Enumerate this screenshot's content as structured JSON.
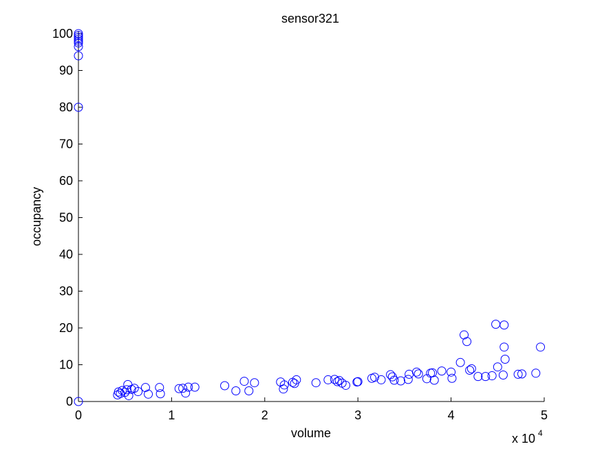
{
  "chart_data": {
    "type": "scatter",
    "title": "sensor321",
    "xlabel": "volume",
    "ylabel": "occupancy",
    "x_multiplier_label": "x 10",
    "x_multiplier_exponent": "4",
    "xlim": [
      0,
      5
    ],
    "ylim": [
      0,
      100
    ],
    "xticks": [
      "0",
      "1",
      "2",
      "3",
      "4",
      "5"
    ],
    "yticks": [
      "0",
      "10",
      "20",
      "30",
      "40",
      "50",
      "60",
      "70",
      "80",
      "90",
      "100"
    ],
    "grid": false,
    "marker": "open-circle",
    "marker_color": "#0000ff",
    "series": [
      {
        "points": [
          [
            0,
            0
          ],
          [
            0,
            80
          ],
          [
            0,
            94
          ],
          [
            0,
            96.5
          ],
          [
            0,
            97.5
          ],
          [
            0,
            98
          ],
          [
            0,
            98.5
          ],
          [
            0,
            99
          ],
          [
            0,
            99.5
          ],
          [
            0,
            100
          ],
          [
            0.42,
            1.8
          ],
          [
            0.43,
            2.6
          ],
          [
            0.45,
            2.2
          ],
          [
            0.47,
            3.0
          ],
          [
            0.5,
            2.5
          ],
          [
            0.52,
            3.2
          ],
          [
            0.53,
            4.6
          ],
          [
            0.54,
            1.6
          ],
          [
            0.57,
            3.3
          ],
          [
            0.6,
            3.6
          ],
          [
            0.64,
            2.7
          ],
          [
            0.72,
            3.8
          ],
          [
            0.75,
            2.0
          ],
          [
            0.87,
            3.8
          ],
          [
            0.88,
            2.1
          ],
          [
            1.08,
            3.5
          ],
          [
            1.12,
            3.6
          ],
          [
            1.15,
            2.3
          ],
          [
            1.18,
            3.9
          ],
          [
            1.25,
            3.9
          ],
          [
            1.57,
            4.3
          ],
          [
            1.69,
            2.9
          ],
          [
            1.78,
            5.5
          ],
          [
            1.83,
            2.9
          ],
          [
            1.89,
            5.1
          ],
          [
            2.17,
            5.3
          ],
          [
            2.2,
            3.4
          ],
          [
            2.21,
            4.5
          ],
          [
            2.3,
            5.2
          ],
          [
            2.32,
            4.9
          ],
          [
            2.34,
            5.9
          ],
          [
            2.55,
            5.1
          ],
          [
            2.68,
            5.9
          ],
          [
            2.75,
            6.0
          ],
          [
            2.78,
            5.4
          ],
          [
            2.8,
            5.7
          ],
          [
            2.83,
            5.0
          ],
          [
            2.87,
            4.4
          ],
          [
            2.99,
            5.3
          ],
          [
            3.0,
            5.4
          ],
          [
            3.15,
            6.3
          ],
          [
            3.18,
            6.6
          ],
          [
            3.25,
            5.9
          ],
          [
            3.35,
            7.3
          ],
          [
            3.37,
            6.7
          ],
          [
            3.39,
            5.8
          ],
          [
            3.46,
            5.6
          ],
          [
            3.54,
            6.0
          ],
          [
            3.55,
            7.4
          ],
          [
            3.63,
            8.0
          ],
          [
            3.65,
            7.5
          ],
          [
            3.74,
            6.2
          ],
          [
            3.78,
            7.7
          ],
          [
            3.8,
            7.8
          ],
          [
            3.82,
            5.8
          ],
          [
            3.9,
            8.3
          ],
          [
            4.0,
            8.0
          ],
          [
            4.01,
            6.3
          ],
          [
            4.1,
            10.6
          ],
          [
            4.14,
            18.1
          ],
          [
            4.17,
            16.3
          ],
          [
            4.2,
            8.5
          ],
          [
            4.22,
            8.9
          ],
          [
            4.29,
            6.8
          ],
          [
            4.37,
            6.8
          ],
          [
            4.44,
            7.0
          ],
          [
            4.48,
            21.0
          ],
          [
            4.5,
            9.4
          ],
          [
            4.56,
            7.2
          ],
          [
            4.57,
            14.8
          ],
          [
            4.57,
            20.8
          ],
          [
            4.58,
            11.5
          ],
          [
            4.72,
            7.4
          ],
          [
            4.76,
            7.5
          ],
          [
            4.91,
            7.7
          ],
          [
            4.96,
            14.8
          ]
        ]
      }
    ]
  }
}
